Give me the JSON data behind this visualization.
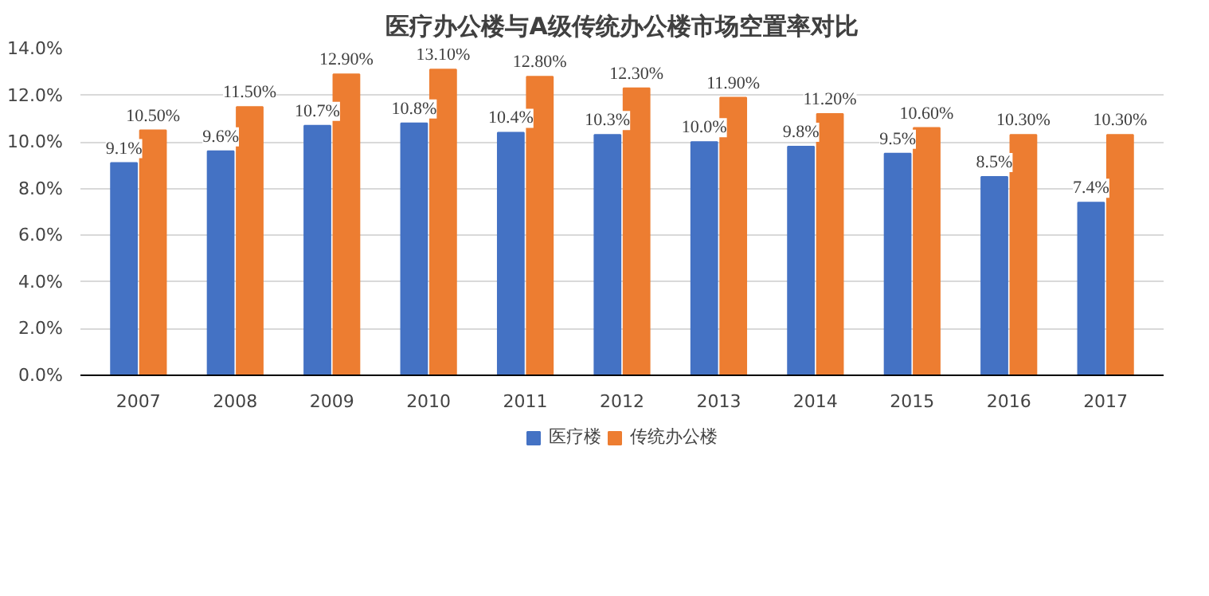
{
  "chart_data": {
    "type": "bar",
    "title": "医疗办公楼与A级传统办公楼市场空置率对比",
    "categories": [
      "2007",
      "2008",
      "2009",
      "2010",
      "2011",
      "2012",
      "2013",
      "2014",
      "2015",
      "2016",
      "2017"
    ],
    "series": [
      {
        "name": "医疗楼",
        "color": "#4472c4",
        "values": [
          9.1,
          9.6,
          10.7,
          10.8,
          10.4,
          10.3,
          10.0,
          9.8,
          9.5,
          8.5,
          7.4
        ],
        "value_labels": [
          "9.1%",
          "9.6%",
          "10.7%",
          "10.8%",
          "10.4%",
          "10.3%",
          "10.0%",
          "9.8%",
          "9.5%",
          "8.5%",
          "7.4%"
        ]
      },
      {
        "name": "传统办公楼",
        "color": "#ed7d31",
        "values": [
          10.5,
          11.5,
          12.9,
          13.1,
          12.8,
          12.3,
          11.9,
          11.2,
          10.6,
          10.3,
          10.3
        ],
        "value_labels": [
          "10.50%",
          "11.50%",
          "12.90%",
          "13.10%",
          "12.80%",
          "12.30%",
          "11.90%",
          "11.20%",
          "10.60%",
          "10.30%",
          "10.30%"
        ]
      }
    ],
    "ylim": [
      0,
      14
    ],
    "yticks": [
      {
        "value": 0,
        "label": "0.0%"
      },
      {
        "value": 2,
        "label": "2.0%"
      },
      {
        "value": 4,
        "label": "4.0%"
      },
      {
        "value": 6,
        "label": "6.0%"
      },
      {
        "value": 8,
        "label": "8.0%"
      },
      {
        "value": 10,
        "label": "10.0%"
      },
      {
        "value": 12,
        "label": "12.0%"
      },
      {
        "value": 14,
        "label": "14.0%"
      }
    ],
    "grid": "y",
    "legend": "bottom"
  }
}
